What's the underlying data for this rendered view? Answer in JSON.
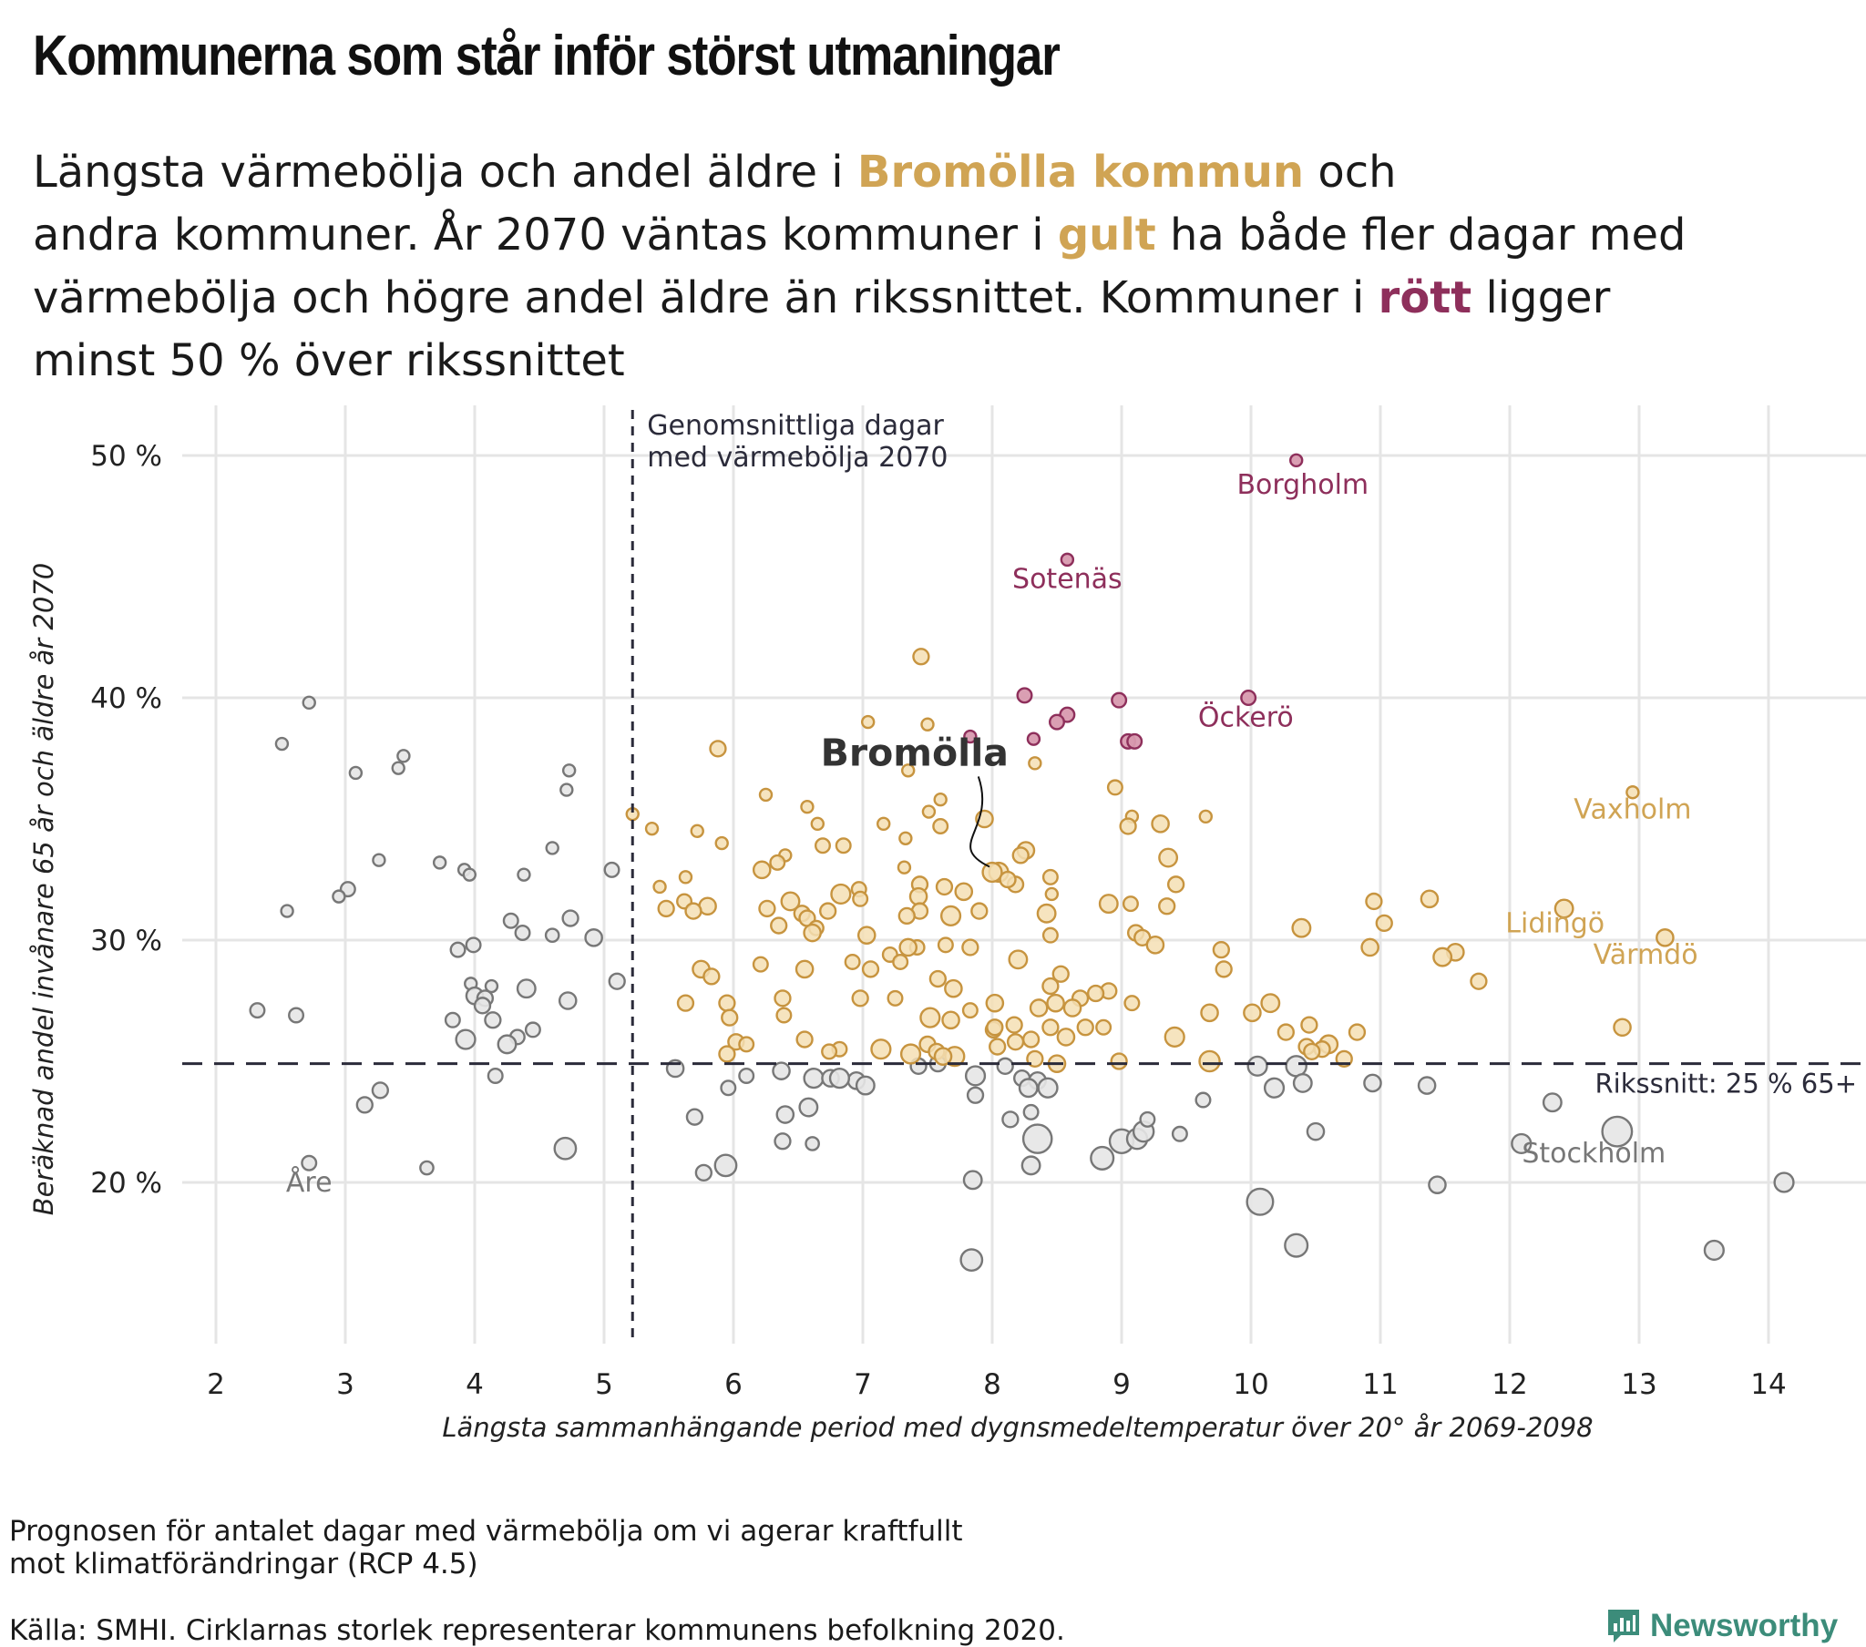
{
  "title": "Kommunerna som står inför störst utmaningar",
  "subtitle": {
    "line1_pre": "Längsta värmebölja och andel äldre i ",
    "line1_hl": "Bromölla kommun",
    "line1_post": " och",
    "line2_pre": "andra kommuner. År 2070 väntas kommuner i ",
    "line2_hl": "gult",
    "line2_post": " ha både fler dagar med",
    "line3_pre": "värmebölja och högre andel äldre än rikssnittet. Kommuner i ",
    "line3_hl": "rött",
    "line3_post": " ligger",
    "line4": "minst 50 % över rikssnittet"
  },
  "footnote": {
    "line1": "Prognosen för antalet dagar med värmebölja om vi agerar kraftfullt",
    "line2": "mot klimatförändringar (RCP 4.5)",
    "source": "Källa: SMHI. Cirklarnas storlek representerar kommunens befolkning 2020."
  },
  "brand": "Newsworthy",
  "colors": {
    "gold": "#d0a454",
    "red": "#8e2f5b",
    "grey": "#777777",
    "reference": "#2b2b3a",
    "grid": "#e5e5e5"
  },
  "chart_data": {
    "type": "scatter",
    "xlabel": "Längsta sammanhängande period med dygnsmedeltemperatur över 20° år 2069-2098",
    "ylabel": "Beräknad andel invånare 65 år och äldre år 2070",
    "xlim": [
      1.75,
      14.6
    ],
    "ylim": [
      14,
      52
    ],
    "x_ticks": [
      2,
      3,
      4,
      5,
      6,
      7,
      8,
      9,
      10,
      11,
      12,
      13,
      14
    ],
    "y_ticks": [
      20,
      30,
      40,
      50
    ],
    "y_tick_labels": [
      "20 %",
      "30 %",
      "40 %",
      "50 %"
    ],
    "grid": true,
    "size_encodes": "population 2020",
    "reference_lines": {
      "vertical": {
        "x": 5.22,
        "label_line1": "Genomsnittliga dagar",
        "label_line2": "med värmebölja 2070"
      },
      "horizontal": {
        "y": 24.9,
        "label": "Rikssnitt: 25 % 65+"
      }
    },
    "labels": [
      {
        "text": "Borgholm",
        "x": 10.4,
        "y": 48.8,
        "group": "red"
      },
      {
        "text": "Sotenäs",
        "x": 8.58,
        "y": 44.9,
        "group": "red"
      },
      {
        "text": "Öckerö",
        "x": 9.96,
        "y": 39.2,
        "group": "red"
      },
      {
        "text": "Vaxholm",
        "x": 12.95,
        "y": 35.4,
        "group": "gold"
      },
      {
        "text": "Lidingö",
        "x": 12.35,
        "y": 30.7,
        "group": "gold"
      },
      {
        "text": "Värmdö",
        "x": 13.05,
        "y": 29.4,
        "group": "gold"
      },
      {
        "text": "Stockholm",
        "x": 12.65,
        "y": 21.2,
        "group": "grey"
      },
      {
        "text": "Åre",
        "x": 2.72,
        "y": 20.0,
        "group": "grey"
      }
    ],
    "highlight": {
      "text": "Bromölla",
      "x": 8.05,
      "y": 32.8,
      "label_x": 7.4,
      "label_y": 37.2
    },
    "red_points": [
      [
        10.35,
        49.8,
        1
      ],
      [
        8.58,
        45.7,
        1
      ],
      [
        9.98,
        40.0,
        1.2
      ],
      [
        8.25,
        40.1,
        1.2
      ],
      [
        8.98,
        39.9,
        1.2
      ],
      [
        8.58,
        39.3,
        1.2
      ],
      [
        8.5,
        39.0,
        1.2
      ],
      [
        9.05,
        38.2,
        1.2
      ],
      [
        9.1,
        38.2,
        1.2
      ],
      [
        8.32,
        38.3,
        1
      ],
      [
        7.83,
        38.4,
        1
      ]
    ],
    "gold_points": [
      [
        7.45,
        41.7,
        1.3
      ],
      [
        7.5,
        38.9,
        1
      ],
      [
        7.04,
        39.0,
        1
      ],
      [
        5.88,
        37.9,
        1.3
      ],
      [
        8.33,
        37.3,
        1
      ],
      [
        7.35,
        37.0,
        1
      ],
      [
        12.95,
        36.1,
        1
      ],
      [
        8.95,
        36.3,
        1.2
      ],
      [
        6.25,
        36.0,
        1
      ],
      [
        6.57,
        35.5,
        1
      ],
      [
        7.6,
        35.8,
        1
      ],
      [
        9.65,
        35.1,
        1
      ],
      [
        5.22,
        35.2,
        1
      ],
      [
        7.51,
        35.3,
        1
      ],
      [
        7.94,
        35.0,
        1.4
      ],
      [
        9.08,
        35.1,
        1
      ],
      [
        9.3,
        34.8,
        1.4
      ],
      [
        9.05,
        34.7,
        1.3
      ],
      [
        5.37,
        34.6,
        1
      ],
      [
        5.72,
        34.5,
        1
      ],
      [
        6.65,
        34.8,
        1
      ],
      [
        7.16,
        34.8,
        1
      ],
      [
        7.6,
        34.7,
        1.2
      ],
      [
        7.33,
        34.2,
        1
      ],
      [
        5.91,
        34.0,
        1
      ],
      [
        6.85,
        33.9,
        1.2
      ],
      [
        6.69,
        33.9,
        1.2
      ],
      [
        8.26,
        33.7,
        1.4
      ],
      [
        8.22,
        33.5,
        1.3
      ],
      [
        6.4,
        33.5,
        1
      ],
      [
        9.36,
        33.4,
        1.5
      ],
      [
        6.34,
        33.2,
        1.2
      ],
      [
        7.32,
        33.0,
        1
      ],
      [
        6.22,
        32.9,
        1.4
      ],
      [
        8.05,
        32.8,
        1.6
      ],
      [
        8.0,
        32.8,
        1.6
      ],
      [
        8.45,
        32.6,
        1.2
      ],
      [
        5.63,
        32.6,
        1
      ],
      [
        8.18,
        32.3,
        1.3
      ],
      [
        8.12,
        32.5,
        1.3
      ],
      [
        7.44,
        32.3,
        1.3
      ],
      [
        9.42,
        32.3,
        1.3
      ],
      [
        7.63,
        32.2,
        1.3
      ],
      [
        7.78,
        32.0,
        1.4
      ],
      [
        6.97,
        32.1,
        1.2
      ],
      [
        5.43,
        32.2,
        1
      ],
      [
        6.83,
        31.9,
        1.6
      ],
      [
        7.43,
        31.8,
        1.4
      ],
      [
        8.46,
        31.9,
        1
      ],
      [
        6.98,
        31.7,
        1.2
      ],
      [
        11.38,
        31.7,
        1.4
      ],
      [
        10.95,
        31.6,
        1.3
      ],
      [
        5.62,
        31.6,
        1.2
      ],
      [
        6.44,
        31.6,
        1.5
      ],
      [
        8.9,
        31.5,
        1.5
      ],
      [
        9.07,
        31.5,
        1.2
      ],
      [
        9.35,
        31.4,
        1.3
      ],
      [
        5.8,
        31.4,
        1.4
      ],
      [
        5.48,
        31.3,
        1.3
      ],
      [
        6.26,
        31.3,
        1.3
      ],
      [
        5.69,
        31.2,
        1.3
      ],
      [
        7.9,
        31.2,
        1.3
      ],
      [
        6.73,
        31.2,
        1.3
      ],
      [
        12.42,
        31.3,
        1.5
      ],
      [
        7.44,
        31.2,
        1.3
      ],
      [
        8.42,
        31.1,
        1.5
      ],
      [
        6.53,
        31.1,
        1.3
      ],
      [
        7.34,
        31.0,
        1.3
      ],
      [
        7.68,
        31.0,
        1.6
      ],
      [
        6.57,
        30.9,
        1.3
      ],
      [
        6.64,
        30.5,
        1.2
      ],
      [
        11.03,
        30.7,
        1.3
      ],
      [
        10.39,
        30.5,
        1.5
      ],
      [
        6.35,
        30.6,
        1.3
      ],
      [
        9.11,
        30.3,
        1.3
      ],
      [
        6.61,
        30.3,
        1.4
      ],
      [
        7.03,
        30.2,
        1.4
      ],
      [
        9.16,
        30.1,
        1.3
      ],
      [
        8.45,
        30.2,
        1.2
      ],
      [
        13.2,
        30.1,
        1.4
      ],
      [
        9.26,
        29.8,
        1.4
      ],
      [
        7.42,
        29.7,
        1.2
      ],
      [
        7.64,
        29.8,
        1.2
      ],
      [
        7.35,
        29.7,
        1.4
      ],
      [
        7.83,
        29.7,
        1.3
      ],
      [
        9.77,
        29.6,
        1.3
      ],
      [
        10.92,
        29.7,
        1.4
      ],
      [
        11.58,
        29.5,
        1.4
      ],
      [
        7.21,
        29.4,
        1.2
      ],
      [
        11.48,
        29.3,
        1.5
      ],
      [
        8.2,
        29.2,
        1.5
      ],
      [
        7.29,
        29.1,
        1.2
      ],
      [
        6.92,
        29.1,
        1.2
      ],
      [
        6.21,
        29.0,
        1.2
      ],
      [
        5.75,
        28.8,
        1.4
      ],
      [
        6.55,
        28.8,
        1.4
      ],
      [
        7.06,
        28.8,
        1.3
      ],
      [
        5.83,
        28.5,
        1.3
      ],
      [
        7.58,
        28.4,
        1.3
      ],
      [
        8.53,
        28.6,
        1.3
      ],
      [
        9.79,
        28.8,
        1.3
      ],
      [
        11.76,
        28.3,
        1.3
      ],
      [
        8.45,
        28.1,
        1.3
      ],
      [
        7.7,
        28.0,
        1.4
      ],
      [
        8.9,
        27.9,
        1.3
      ],
      [
        8.8,
        27.8,
        1.3
      ],
      [
        8.68,
        27.6,
        1.3
      ],
      [
        6.38,
        27.6,
        1.3
      ],
      [
        6.98,
        27.6,
        1.3
      ],
      [
        7.25,
        27.6,
        1.2
      ],
      [
        8.02,
        27.4,
        1.4
      ],
      [
        8.49,
        27.4,
        1.4
      ],
      [
        10.15,
        27.4,
        1.5
      ],
      [
        9.08,
        27.4,
        1.2
      ],
      [
        5.63,
        27.4,
        1.3
      ],
      [
        5.95,
        27.4,
        1.3
      ],
      [
        8.62,
        27.2,
        1.4
      ],
      [
        8.36,
        27.2,
        1.4
      ],
      [
        7.83,
        27.1,
        1.2
      ],
      [
        10.01,
        27.0,
        1.4
      ],
      [
        6.39,
        26.9,
        1.2
      ],
      [
        9.68,
        27.0,
        1.4
      ],
      [
        5.97,
        26.8,
        1.3
      ],
      [
        7.52,
        26.8,
        1.6
      ],
      [
        7.68,
        26.7,
        1.4
      ],
      [
        8.17,
        26.5,
        1.3
      ],
      [
        8.45,
        26.4,
        1.3
      ],
      [
        8.72,
        26.4,
        1.3
      ],
      [
        8.01,
        26.3,
        1.3
      ],
      [
        10.45,
        26.5,
        1.3
      ],
      [
        8.02,
        26.4,
        1.3
      ],
      [
        12.87,
        26.4,
        1.4
      ],
      [
        10.27,
        26.2,
        1.3
      ],
      [
        10.82,
        26.2,
        1.3
      ],
      [
        8.86,
        26.4,
        1.2
      ],
      [
        9.41,
        26.0,
        1.6
      ],
      [
        8.57,
        26.0,
        1.4
      ],
      [
        6.55,
        25.9,
        1.3
      ],
      [
        8.3,
        25.9,
        1.3
      ],
      [
        8.18,
        25.8,
        1.3
      ],
      [
        6.02,
        25.8,
        1.3
      ],
      [
        6.1,
        25.7,
        1.2
      ],
      [
        7.5,
        25.7,
        1.3
      ],
      [
        8.04,
        25.6,
        1.3
      ],
      [
        10.6,
        25.7,
        1.5
      ],
      [
        10.43,
        25.6,
        1.3
      ],
      [
        7.14,
        25.5,
        1.6
      ],
      [
        6.82,
        25.5,
        1.2
      ],
      [
        10.55,
        25.5,
        1.3
      ],
      [
        7.57,
        25.4,
        1.3
      ],
      [
        10.47,
        25.4,
        1.3
      ],
      [
        5.95,
        25.3,
        1.3
      ],
      [
        6.74,
        25.4,
        1.2
      ],
      [
        7.37,
        25.3,
        1.6
      ],
      [
        7.71,
        25.2,
        1.6
      ],
      [
        7.62,
        25.2,
        1.4
      ],
      [
        10.72,
        25.1,
        1.3
      ],
      [
        8.33,
        25.1,
        1.3
      ],
      [
        9.68,
        25.0,
        1.7
      ],
      [
        8.98,
        25.0,
        1.3
      ],
      [
        8.5,
        24.9,
        1.4
      ]
    ],
    "grey_points": [
      [
        2.72,
        39.8,
        1
      ],
      [
        2.51,
        38.1,
        1
      ],
      [
        3.45,
        37.6,
        1
      ],
      [
        3.08,
        36.9,
        1
      ],
      [
        3.41,
        37.1,
        1
      ],
      [
        4.73,
        37.0,
        1
      ],
      [
        4.71,
        36.2,
        1
      ],
      [
        4.6,
        33.8,
        1
      ],
      [
        3.26,
        33.3,
        1
      ],
      [
        3.73,
        33.2,
        1
      ],
      [
        3.92,
        32.9,
        1
      ],
      [
        3.96,
        32.7,
        1
      ],
      [
        5.06,
        32.9,
        1.2
      ],
      [
        4.38,
        32.7,
        1
      ],
      [
        3.02,
        32.1,
        1.2
      ],
      [
        2.95,
        31.8,
        1
      ],
      [
        2.55,
        31.2,
        1
      ],
      [
        4.74,
        30.9,
        1.3
      ],
      [
        4.28,
        30.8,
        1.2
      ],
      [
        4.37,
        30.3,
        1.2
      ],
      [
        4.6,
        30.2,
        1.1
      ],
      [
        4.92,
        30.1,
        1.4
      ],
      [
        3.99,
        29.8,
        1.2
      ],
      [
        3.87,
        29.6,
        1.2
      ],
      [
        3.97,
        28.2,
        1
      ],
      [
        4.13,
        28.1,
        1
      ],
      [
        5.1,
        28.3,
        1.3
      ],
      [
        4.4,
        28.0,
        1.5
      ],
      [
        4.0,
        27.7,
        1.4
      ],
      [
        4.08,
        27.6,
        1.3
      ],
      [
        4.06,
        27.3,
        1.3
      ],
      [
        4.72,
        27.5,
        1.4
      ],
      [
        2.32,
        27.1,
        1.2
      ],
      [
        2.62,
        26.9,
        1.2
      ],
      [
        3.83,
        26.7,
        1.2
      ],
      [
        4.14,
        26.7,
        1.3
      ],
      [
        4.33,
        26.0,
        1.2
      ],
      [
        4.45,
        26.3,
        1.2
      ],
      [
        3.93,
        25.9,
        1.6
      ],
      [
        4.25,
        25.7,
        1.5
      ],
      [
        4.16,
        24.4,
        1.2
      ],
      [
        3.27,
        23.8,
        1.3
      ],
      [
        3.15,
        23.2,
        1.3
      ],
      [
        5.55,
        24.7,
        1.4
      ],
      [
        6.37,
        24.6,
        1.4
      ],
      [
        6.62,
        24.3,
        1.6
      ],
      [
        6.75,
        24.3,
        1.4
      ],
      [
        6.95,
        24.2,
        1.4
      ],
      [
        6.82,
        24.3,
        1.6
      ],
      [
        7.02,
        24.0,
        1.5
      ],
      [
        6.1,
        24.4,
        1.2
      ],
      [
        5.96,
        23.9,
        1.2
      ],
      [
        7.43,
        24.8,
        1.3
      ],
      [
        7.58,
        24.9,
        1.3
      ],
      [
        8.1,
        24.8,
        1.3
      ],
      [
        8.23,
        24.3,
        1.3
      ],
      [
        7.87,
        24.4,
        1.6
      ],
      [
        8.35,
        24.2,
        1.4
      ],
      [
        8.28,
        23.9,
        1.5
      ],
      [
        8.43,
        23.9,
        1.6
      ],
      [
        7.87,
        23.6,
        1.3
      ],
      [
        8.3,
        22.9,
        1.2
      ],
      [
        8.14,
        22.6,
        1.3
      ],
      [
        8.35,
        21.8,
        2.4
      ],
      [
        9.0,
        21.7,
        2.0
      ],
      [
        9.12,
        21.8,
        1.7
      ],
      [
        9.17,
        22.1,
        1.7
      ],
      [
        9.2,
        22.6,
        1.2
      ],
      [
        9.45,
        22.0,
        1.2
      ],
      [
        10.05,
        24.8,
        1.6
      ],
      [
        10.35,
        24.8,
        1.7
      ],
      [
        10.18,
        23.9,
        1.6
      ],
      [
        10.4,
        24.1,
        1.5
      ],
      [
        9.63,
        23.4,
        1.2
      ],
      [
        10.94,
        24.1,
        1.4
      ],
      [
        11.36,
        24.0,
        1.4
      ],
      [
        12.33,
        23.3,
        1.5
      ],
      [
        10.5,
        22.1,
        1.4
      ],
      [
        12.09,
        21.6,
        1.6
      ],
      [
        12.83,
        22.1,
        2.5
      ],
      [
        5.7,
        22.7,
        1.3
      ],
      [
        6.4,
        22.8,
        1.4
      ],
      [
        6.38,
        21.7,
        1.3
      ],
      [
        6.58,
        23.1,
        1.5
      ],
      [
        6.61,
        21.6,
        1.1
      ],
      [
        5.77,
        20.4,
        1.3
      ],
      [
        5.94,
        20.7,
        1.8
      ],
      [
        4.7,
        21.4,
        1.8
      ],
      [
        8.85,
        21.0,
        1.9
      ],
      [
        8.3,
        20.7,
        1.5
      ],
      [
        7.85,
        20.1,
        1.5
      ],
      [
        3.63,
        20.6,
        1.1
      ],
      [
        2.72,
        20.8,
        1.2
      ],
      [
        11.44,
        19.9,
        1.4
      ],
      [
        14.12,
        20.0,
        1.6
      ],
      [
        10.07,
        19.2,
        2.2
      ],
      [
        10.35,
        17.4,
        1.9
      ],
      [
        7.84,
        16.8,
        1.8
      ],
      [
        13.58,
        17.2,
        1.6
      ]
    ]
  }
}
